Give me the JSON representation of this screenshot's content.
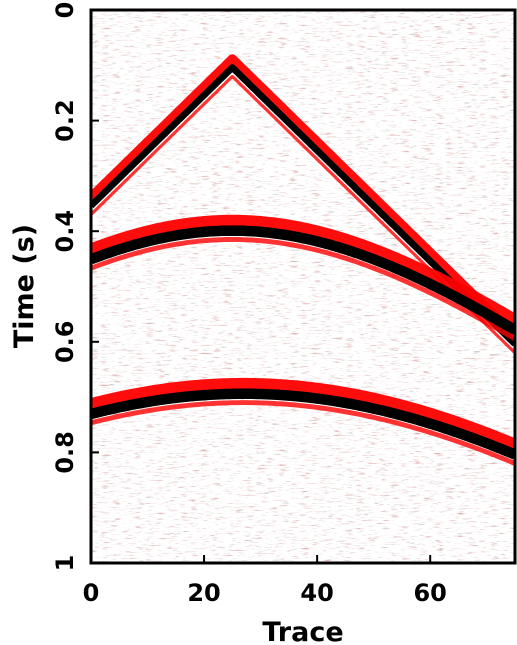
{
  "chart_data": {
    "type": "heatmap",
    "subtype": "seismic-gather",
    "title": "",
    "xlabel": "Trace",
    "ylabel": "Time (s)",
    "xlim": [
      0,
      75
    ],
    "ylim": [
      0,
      1
    ],
    "y_inverted": true,
    "x_ticks": [
      "0",
      "20",
      "40",
      "60"
    ],
    "x_tick_values": [
      0,
      20,
      40,
      60
    ],
    "y_ticks": [
      "0",
      "0.2",
      "0.4",
      "0.6",
      "0.8",
      "1"
    ],
    "y_tick_values": [
      0,
      0.2,
      0.4,
      0.6,
      0.8,
      1
    ],
    "colormap": {
      "negative": "#ff0000",
      "zero": "#ffffff",
      "positive": "#000000"
    },
    "events": [
      {
        "shape": "linear-v",
        "apex_trace": 25,
        "apex_time": 0.1,
        "time_at_trace_0": 0.35,
        "time_at_trace_75": 0.6
      },
      {
        "shape": "hyperbola",
        "apex_trace": 25,
        "apex_time": 0.395,
        "time_at_trace_0": 0.445,
        "time_at_trace_75": 0.575
      },
      {
        "shape": "hyperbola",
        "apex_trace": 27,
        "apex_time": 0.69,
        "time_at_trace_0": 0.72,
        "time_at_trace_75": 0.8
      }
    ]
  }
}
